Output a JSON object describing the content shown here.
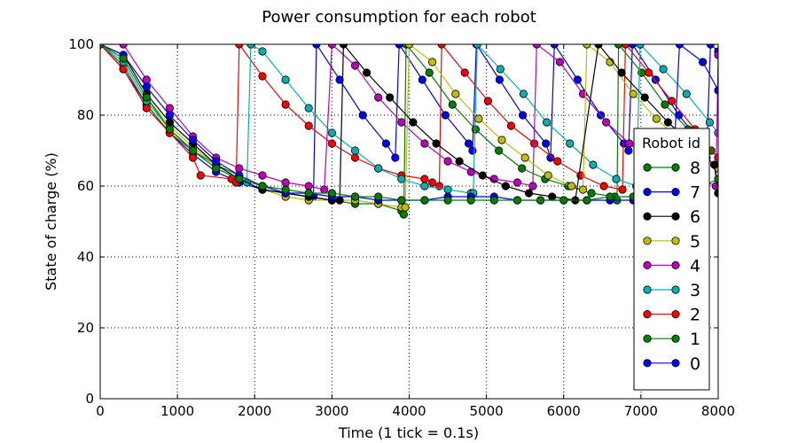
{
  "chart_data": {
    "type": "line",
    "title": "Power consumption for each robot",
    "xlabel": "Time (1 tick = 0.1s)",
    "ylabel": "State of charge (%)",
    "xlim": [
      0,
      8000
    ],
    "ylim": [
      0,
      100
    ],
    "xticks": [
      "0",
      "1000",
      "2000",
      "3000",
      "4000",
      "5000",
      "6000",
      "7000",
      "8000"
    ],
    "yticks": [
      "0",
      "20",
      "40",
      "60",
      "80",
      "100"
    ],
    "grid": true,
    "legend": {
      "title": "Robot id",
      "placement": "right"
    },
    "series": [
      {
        "name": "0",
        "color": "#0000ff",
        "x": [
          0,
          300,
          600,
          900,
          1200,
          1500,
          1800,
          2100,
          2400,
          2700,
          2760,
          2800,
          3100,
          3400,
          3700,
          3820,
          3870,
          4170,
          4470,
          4770,
          4820,
          4870,
          5170,
          5470,
          5770,
          5830,
          5880,
          6180,
          6480,
          6780,
          6840,
          6890,
          7190,
          7490,
          7790,
          7850,
          7900,
          8000
        ],
        "y": [
          100,
          93,
          83,
          75,
          69,
          64,
          61,
          59,
          58,
          57,
          57,
          100,
          90,
          80,
          72,
          68,
          100,
          90,
          80,
          72,
          70,
          100,
          90,
          80,
          72,
          68,
          100,
          90,
          80,
          72,
          70,
          100,
          90,
          80,
          72,
          68,
          100,
          98
        ]
      },
      {
        "name": "1",
        "color": "#008000",
        "x": [
          0,
          300,
          600,
          900,
          1200,
          1500,
          1800,
          2100,
          2400,
          2700,
          3000,
          3300,
          3600,
          3900,
          3930,
          3960,
          4260,
          4560,
          4860,
          5160,
          5460,
          5760,
          6060,
          6360,
          6660,
          6690,
          6710,
          7010,
          7310,
          7610,
          7910,
          8000
        ],
        "y": [
          100,
          94,
          83,
          75,
          70,
          66,
          63,
          60,
          58,
          57,
          56,
          55,
          55,
          53,
          52,
          100,
          92,
          83,
          76,
          70,
          65,
          62,
          60,
          58,
          57,
          56,
          100,
          92,
          83,
          76,
          70,
          68
        ]
      },
      {
        "name": "2",
        "color": "#ff0000",
        "x": [
          0,
          300,
          600,
          900,
          1200,
          1300,
          1700,
          1760,
          1800,
          2100,
          2400,
          2700,
          3000,
          3300,
          3600,
          3900,
          4200,
          4300,
          4390,
          4420,
          4720,
          5020,
          5320,
          5620,
          5920,
          6220,
          6520,
          6760,
          6800,
          7100,
          7400,
          7700,
          8000
        ],
        "y": [
          100,
          93,
          82,
          75,
          68,
          63,
          62,
          61,
          100,
          91,
          83,
          77,
          72,
          68,
          65,
          63,
          62,
          61,
          60,
          100,
          92,
          84,
          77,
          72,
          67,
          63,
          60,
          59,
          100,
          92,
          84,
          76,
          68
        ]
      },
      {
        "name": "3",
        "color": "#00b3b3",
        "x": [
          0,
          300,
          600,
          900,
          1200,
          1500,
          1800,
          1900,
          1950,
          2100,
          2400,
          2700,
          3000,
          3300,
          3600,
          3900,
          4200,
          4500,
          4800,
          4830,
          4880,
          5180,
          5480,
          5780,
          6080,
          6380,
          6680,
          6940,
          6990,
          7290,
          7590,
          7890,
          8000
        ],
        "y": [
          100,
          95,
          84,
          76,
          70,
          65,
          62,
          61,
          100,
          98,
          90,
          82,
          75,
          70,
          65,
          62,
          60,
          59,
          58,
          58,
          100,
          93,
          86,
          78,
          72,
          66,
          62,
          60,
          100,
          93,
          86,
          78,
          75
        ]
      },
      {
        "name": "4",
        "color": "#bf00bf",
        "x": [
          0,
          300,
          600,
          900,
          1200,
          1500,
          1800,
          2100,
          2400,
          2700,
          2900,
          3000,
          3300,
          3600,
          3900,
          4200,
          4500,
          4800,
          5100,
          5400,
          5600,
          5650,
          5950,
          6250,
          6550,
          6850,
          7150,
          7450,
          7750,
          7970,
          8000
        ],
        "y": [
          100,
          100,
          90,
          82,
          74,
          68,
          65,
          63,
          61,
          60,
          59,
          100,
          94,
          85,
          78,
          72,
          67,
          64,
          62,
          61,
          60,
          100,
          95,
          86,
          78,
          72,
          67,
          64,
          62,
          60,
          97
        ]
      },
      {
        "name": "5",
        "color": "#bfbf00",
        "x": [
          0,
          300,
          600,
          900,
          1200,
          1500,
          1800,
          2100,
          2400,
          2700,
          3000,
          3300,
          3600,
          3900,
          3950,
          4000,
          4300,
          4600,
          4900,
          5200,
          5500,
          5800,
          6100,
          6250,
          6300,
          6600,
          6900,
          7200,
          7500,
          7800,
          8000
        ],
        "y": [
          100,
          96,
          85,
          77,
          71,
          66,
          62,
          59,
          57,
          56,
          56,
          56,
          55,
          54,
          54,
          100,
          95,
          86,
          79,
          73,
          68,
          63,
          60,
          59,
          100,
          95,
          86,
          79,
          73,
          68,
          65
        ]
      },
      {
        "name": "6",
        "color": "#000000",
        "x": [
          0,
          300,
          600,
          900,
          1200,
          1500,
          1800,
          2100,
          2400,
          2700,
          3000,
          3100,
          3150,
          3450,
          3750,
          4050,
          4350,
          4650,
          4950,
          5250,
          5550,
          5850,
          6150,
          6450,
          6750,
          7050,
          7350,
          7650,
          7950,
          8000
        ],
        "y": [
          100,
          97,
          86,
          78,
          72,
          66,
          62,
          59,
          58,
          57,
          56,
          56,
          100,
          92,
          85,
          78,
          72,
          67,
          63,
          60,
          58,
          57,
          56,
          100,
          92,
          85,
          78,
          72,
          66,
          58
        ]
      },
      {
        "name": "7",
        "color": "#0000ff",
        "x": [
          0,
          300,
          600,
          900,
          1200,
          1500,
          1800,
          2100,
          2400,
          2700,
          3000,
          3300,
          3600,
          3900,
          4200,
          4500,
          4800,
          5100,
          5400,
          5700,
          6000,
          6300,
          6600,
          6900,
          7200,
          7400,
          7500,
          7800,
          8000
        ],
        "y": [
          100,
          97,
          88,
          80,
          73,
          67,
          63,
          60,
          58,
          58,
          57,
          57,
          56,
          56,
          56,
          57,
          57,
          57,
          56,
          56,
          56,
          56,
          56,
          56,
          56,
          57,
          100,
          95,
          87
        ]
      },
      {
        "name": "8",
        "color": "#008000",
        "x": [
          0,
          300,
          600,
          900,
          1200,
          1500,
          1800,
          2100,
          2400,
          2700,
          3000,
          3300,
          3600,
          3900,
          4200,
          4500,
          4800,
          5100,
          5400,
          5700,
          6000,
          6300,
          6600,
          6900,
          7200,
          7500,
          7800,
          8000
        ],
        "y": [
          100,
          96,
          85,
          76,
          70,
          65,
          62,
          60,
          59,
          58,
          58,
          57,
          57,
          56,
          56,
          56,
          56,
          56,
          56,
          56,
          56,
          56,
          57,
          57,
          58,
          59,
          60,
          62
        ]
      }
    ]
  }
}
